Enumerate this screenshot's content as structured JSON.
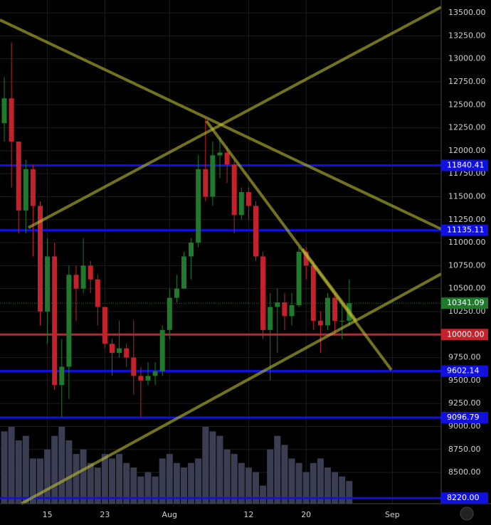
{
  "chart_data": {
    "type": "candlestick",
    "categories": [
      null,
      null,
      null,
      null,
      null,
      null,
      "15",
      null,
      null,
      null,
      null,
      null,
      null,
      null,
      "23",
      null,
      null,
      null,
      null,
      null,
      null,
      null,
      null,
      "Aug",
      null,
      null,
      null,
      null,
      null,
      null,
      null,
      null,
      null,
      null,
      "12",
      null,
      null,
      null,
      null,
      null,
      null,
      null,
      "20",
      null,
      null,
      null,
      null,
      null,
      null,
      null,
      null,
      null,
      null,
      null,
      "Sep",
      null,
      null,
      null,
      null,
      null,
      null
    ],
    "open": [
      12300,
      12570,
      12100,
      11350,
      11800,
      11400,
      10250,
      10850,
      9450,
      9650,
      10650,
      10500,
      10750,
      10600,
      10300,
      9900,
      9800,
      9850,
      9750,
      9550,
      9500,
      9550,
      9600,
      10050,
      10400,
      10500,
      10850,
      11000,
      11800,
      11500,
      11950,
      11980,
      11850,
      11300,
      11550,
      11400,
      10850,
      10050,
      10300,
      10350,
      10200,
      10320,
      10900,
      10750,
      10150,
      10100,
      10400,
      10150,
      10150,
      null,
      null,
      null,
      null,
      null,
      null,
      null,
      null,
      null,
      null,
      null,
      null
    ],
    "high": [
      12800,
      13180,
      12100,
      11900,
      11850,
      11450,
      11050,
      11000,
      9950,
      10750,
      10750,
      11050,
      10800,
      10650,
      10300,
      9950,
      10150,
      9900,
      10150,
      9650,
      9700,
      9700,
      10100,
      10500,
      10650,
      10900,
      11050,
      11950,
      12350,
      12100,
      12150,
      12050,
      11900,
      11600,
      11600,
      11450,
      10900,
      10450,
      10500,
      10450,
      10450,
      10950,
      10950,
      10800,
      10250,
      10450,
      10450,
      10350,
      10600,
      null,
      null,
      null,
      null,
      null,
      null,
      null,
      null,
      null,
      null,
      null,
      null
    ],
    "low": [
      12100,
      11600,
      11100,
      11100,
      10850,
      10100,
      9900,
      9400,
      9100,
      9300,
      10150,
      10450,
      10450,
      10100,
      9850,
      9550,
      9750,
      9650,
      9350,
      9100,
      9450,
      9450,
      9550,
      9950,
      10350,
      10500,
      10600,
      10950,
      11450,
      11400,
      11700,
      11650,
      11100,
      11250,
      11250,
      10800,
      9950,
      9500,
      9800,
      10050,
      10100,
      10300,
      10600,
      10050,
      9800,
      10050,
      10000,
      9950,
      10100,
      null,
      null,
      null,
      null,
      null,
      null,
      null,
      null,
      null,
      null,
      null,
      null
    ],
    "close": [
      12570,
      12100,
      11350,
      11800,
      11400,
      10250,
      10850,
      9450,
      9650,
      10650,
      10500,
      10750,
      10600,
      10300,
      9900,
      9800,
      9850,
      9750,
      9550,
      9500,
      9550,
      9600,
      10050,
      10400,
      10500,
      10850,
      11000,
      11800,
      11500,
      11950,
      11980,
      11850,
      11300,
      11550,
      11400,
      10850,
      10050,
      10300,
      10350,
      10200,
      10320,
      10900,
      10750,
      10150,
      10100,
      10400,
      10150,
      10150,
      10341.09,
      null,
      null,
      null,
      null,
      null,
      null,
      null,
      null,
      null,
      null,
      null,
      null
    ],
    "volume": [
      80,
      85,
      70,
      75,
      50,
      50,
      60,
      75,
      85,
      70,
      55,
      60,
      45,
      40,
      55,
      50,
      55,
      45,
      40,
      30,
      35,
      30,
      50,
      55,
      45,
      40,
      45,
      50,
      85,
      80,
      75,
      60,
      55,
      45,
      40,
      35,
      20,
      60,
      75,
      65,
      50,
      45,
      35,
      45,
      50,
      40,
      35,
      30,
      25,
      null,
      null,
      null,
      null,
      null,
      null,
      null,
      null,
      null,
      null,
      null,
      null
    ],
    "up_color": "#1f7a2c",
    "down_color": "#c4222b",
    "volume_color": "#3b3e52",
    "ylim": [
      8160,
      13640
    ],
    "yticks": [
      {
        "value": 8500,
        "label": "8500.00"
      },
      {
        "value": 8750,
        "label": "8750.00"
      },
      {
        "value": 9000,
        "label": "9000.00"
      },
      {
        "value": 9250,
        "label": "9250.00"
      },
      {
        "value": 9500,
        "label": "9500.00"
      },
      {
        "value": 9750,
        "label": "9750.00"
      },
      {
        "value": 10250,
        "label": "10250.00"
      },
      {
        "value": 10500,
        "label": "10500.00"
      },
      {
        "value": 10750,
        "label": "10750.00"
      },
      {
        "value": 11000,
        "label": "11000.00"
      },
      {
        "value": 11250,
        "label": "11250.00"
      },
      {
        "value": 11500,
        "label": "11500.00"
      },
      {
        "value": 11750,
        "label": "11750.00"
      },
      {
        "value": 12000,
        "label": "12000.00"
      },
      {
        "value": 12250,
        "label": "12250.00"
      },
      {
        "value": 12500,
        "label": "12500.00"
      },
      {
        "value": 12750,
        "label": "12750.00"
      },
      {
        "value": 13000,
        "label": "13000.00"
      },
      {
        "value": 13250,
        "label": "13250.00"
      },
      {
        "value": 13500,
        "label": "13500.00"
      }
    ],
    "grid": true,
    "levels": [
      {
        "value": 11840.41,
        "label": "11840.41",
        "color": "#1010e0"
      },
      {
        "value": 11135.11,
        "label": "11135.11",
        "color": "#1010e0"
      },
      {
        "value": 10000,
        "label": "10000.00",
        "color": "#c4222b"
      },
      {
        "value": 9602.14,
        "label": "9602.14",
        "color": "#1010e0"
      },
      {
        "value": 9096.79,
        "label": "9096.79",
        "color": "#1010e0"
      },
      {
        "value": 8220,
        "label": "8220.00",
        "color": "#1010e0"
      }
    ],
    "last_price": {
      "value": 10341.09,
      "label": "10341.09",
      "color": "#1f7a2c"
    }
  }
}
